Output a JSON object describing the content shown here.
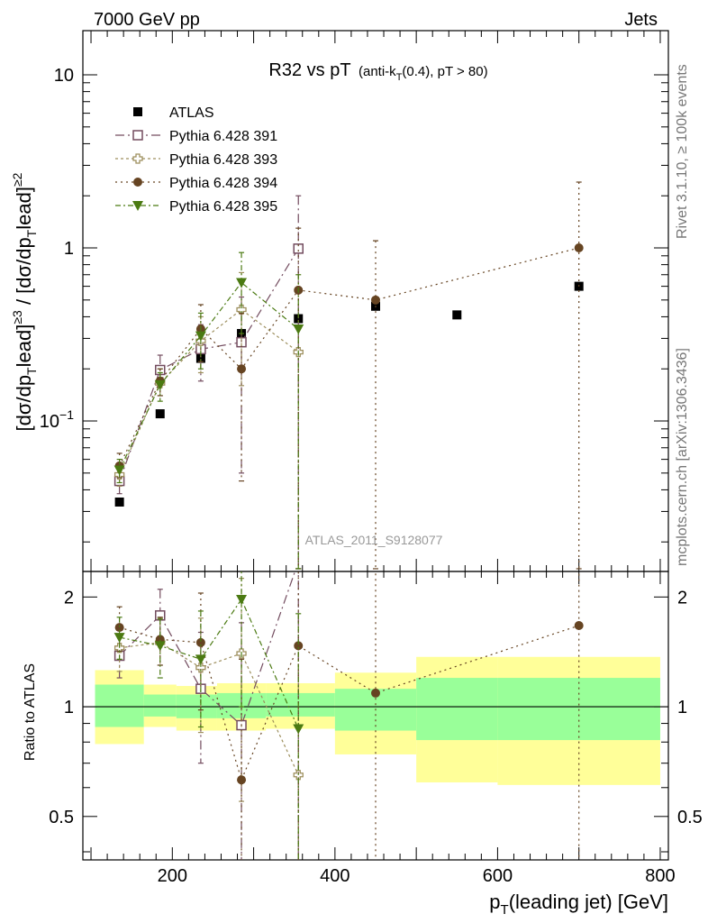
{
  "header": {
    "left": "7000 GeV pp",
    "right": "Jets",
    "plot_title_main": "R32 vs pT",
    "plot_title_sub": "(anti-k_T(0.4), pT > 80)"
  },
  "side_labels": {
    "rivet": "Rivet 3.1.10, ≥ 100k events",
    "mcplots": "mcplots.cern.ch [arXiv:1306.3436]"
  },
  "watermark": "ATLAS_2011_S9128077",
  "chart_data": [
    {
      "type": "scatter",
      "panel": "main",
      "title": "R32 vs pT (anti-k_T(0.4), pT > 80)",
      "xlabel": "p_T(leading jet) [GeV]",
      "ylabel": "[dσ/dp_T^lead]^≥3 / [dσ/dp_T^lead]^≥2",
      "xlim": [
        90,
        810
      ],
      "ylim": [
        0.0135,
        18
      ],
      "yscale": "log",
      "yticks": [
        {
          "v": 0.1,
          "label": "10",
          "sup": "−1"
        },
        {
          "v": 1,
          "label": "1",
          "sup": ""
        },
        {
          "v": 10,
          "label": "10",
          "sup": ""
        }
      ],
      "legend_position": "top-left",
      "series": [
        {
          "name": "ATLAS",
          "color": "#000000",
          "marker": "filled-square",
          "points": [
            {
              "x": 135,
              "y": 0.034
            },
            {
              "x": 185,
              "y": 0.11
            },
            {
              "x": 235,
              "y": 0.23
            },
            {
              "x": 285,
              "y": 0.32
            },
            {
              "x": 355,
              "y": 0.39
            },
            {
              "x": 450,
              "y": 0.46
            },
            {
              "x": 550,
              "y": 0.41
            },
            {
              "x": 700,
              "y": 0.6
            }
          ]
        },
        {
          "name": "Pythia 6.428 391",
          "color": "#734c5f",
          "marker": "open-square",
          "dash": "10,4,2,4",
          "points": [
            {
              "x": 135,
              "y": 0.045,
              "lo": 0.038,
              "hi": 0.054
            },
            {
              "x": 185,
              "y": 0.197,
              "lo": 0.16,
              "hi": 0.24
            },
            {
              "x": 235,
              "y": 0.26,
              "lo": 0.17,
              "hi": 0.36
            },
            {
              "x": 285,
              "y": 0.285,
              "lo": 0.05,
              "hi": 0.52
            },
            {
              "x": 355,
              "y": 0.99,
              "lo": 0.014,
              "hi": 2.0
            }
          ]
        },
        {
          "name": "Pythia 6.428 393",
          "color": "#9d8f5d",
          "marker": "open-cross",
          "dash": "3,3",
          "points": [
            {
              "x": 135,
              "y": 0.049,
              "lo": 0.042,
              "hi": 0.057
            },
            {
              "x": 185,
              "y": 0.165,
              "lo": 0.14,
              "hi": 0.2
            },
            {
              "x": 235,
              "y": 0.29,
              "lo": 0.19,
              "hi": 0.4
            },
            {
              "x": 285,
              "y": 0.44,
              "lo": 0.16,
              "hi": 0.72
            },
            {
              "x": 355,
              "y": 0.25,
              "lo": 0.014,
              "hi": 0.55
            }
          ]
        },
        {
          "name": "Pythia 6.428 394",
          "color": "#664422",
          "marker": "filled-circle",
          "dash": "2,4",
          "points": [
            {
              "x": 135,
              "y": 0.055,
              "lo": 0.047,
              "hi": 0.065
            },
            {
              "x": 185,
              "y": 0.17,
              "lo": 0.14,
              "hi": 0.2
            },
            {
              "x": 235,
              "y": 0.34,
              "lo": 0.22,
              "hi": 0.47
            },
            {
              "x": 285,
              "y": 0.2,
              "lo": 0.045,
              "hi": 0.42
            },
            {
              "x": 355,
              "y": 0.57,
              "lo": 0.014,
              "hi": 1.3
            },
            {
              "x": 450,
              "y": 0.5,
              "lo": 0.014,
              "hi": 1.1
            },
            {
              "x": 700,
              "y": 1.0,
              "lo": 0.014,
              "hi": 2.4
            }
          ]
        },
        {
          "name": "Pythia 6.428 395",
          "color": "#4b7a12",
          "marker": "filled-triangle-down",
          "dash": "6,3,2,3",
          "points": [
            {
              "x": 135,
              "y": 0.052,
              "lo": 0.044,
              "hi": 0.06
            },
            {
              "x": 185,
              "y": 0.162,
              "lo": 0.13,
              "hi": 0.19
            },
            {
              "x": 235,
              "y": 0.31,
              "lo": 0.2,
              "hi": 0.42
            },
            {
              "x": 285,
              "y": 0.63,
              "lo": 0.32,
              "hi": 0.94
            },
            {
              "x": 355,
              "y": 0.34,
              "lo": 0.014,
              "hi": 0.7
            }
          ]
        }
      ]
    },
    {
      "type": "scatter",
      "panel": "ratio",
      "xlabel": "p_T(leading jet) [GeV]",
      "ylabel": "Ratio to ATLAS",
      "xlim": [
        90,
        810
      ],
      "ylim": [
        0.38,
        2.35
      ],
      "yscale": "log",
      "xticks": [
        200,
        400,
        600,
        800
      ],
      "yticks": [
        0.5,
        1,
        2
      ],
      "reference_line": 1,
      "bands": [
        {
          "x0": 105,
          "x1": 165,
          "green": [
            0.88,
            1.15
          ],
          "yellow": [
            0.79,
            1.26
          ]
        },
        {
          "x0": 165,
          "x1": 205,
          "green": [
            0.94,
            1.08
          ],
          "yellow": [
            0.88,
            1.15
          ]
        },
        {
          "x0": 205,
          "x1": 255,
          "green": [
            0.93,
            1.08
          ],
          "yellow": [
            0.86,
            1.14
          ]
        },
        {
          "x0": 255,
          "x1": 315,
          "green": [
            0.93,
            1.09
          ],
          "yellow": [
            0.86,
            1.16
          ]
        },
        {
          "x0": 315,
          "x1": 400,
          "green": [
            0.94,
            1.09
          ],
          "yellow": [
            0.87,
            1.16
          ]
        },
        {
          "x0": 400,
          "x1": 500,
          "green": [
            0.86,
            1.12
          ],
          "yellow": [
            0.74,
            1.24
          ]
        },
        {
          "x0": 500,
          "x1": 600,
          "green": [
            0.81,
            1.2
          ],
          "yellow": [
            0.62,
            1.37
          ]
        },
        {
          "x0": 600,
          "x1": 800,
          "green": [
            0.81,
            1.2
          ],
          "yellow": [
            0.61,
            1.37
          ]
        }
      ],
      "series": [
        {
          "name": "Pythia 6.428 391",
          "color": "#734c5f",
          "marker": "open-square",
          "dash": "10,4,2,4",
          "points": [
            {
              "x": 135,
              "y": 1.38,
              "lo": 1.2,
              "hi": 1.58
            },
            {
              "x": 185,
              "y": 1.78,
              "lo": 1.5,
              "hi": 2.1
            },
            {
              "x": 235,
              "y": 1.12,
              "lo": 0.7,
              "hi": 1.6
            },
            {
              "x": 285,
              "y": 0.89,
              "lo": 0.35,
              "hi": 1.7
            },
            {
              "x": 355,
              "y": 2.5,
              "lo": 0.35,
              "hi": 3.5
            }
          ]
        },
        {
          "name": "Pythia 6.428 393",
          "color": "#9d8f5d",
          "marker": "open-cross",
          "dash": "3,3",
          "points": [
            {
              "x": 135,
              "y": 1.45,
              "lo": 1.25,
              "hi": 1.65
            },
            {
              "x": 185,
              "y": 1.5,
              "lo": 1.3,
              "hi": 1.75
            },
            {
              "x": 235,
              "y": 1.28,
              "lo": 0.85,
              "hi": 1.75
            },
            {
              "x": 285,
              "y": 1.4,
              "lo": 0.55,
              "hi": 2.25
            },
            {
              "x": 355,
              "y": 0.65,
              "lo": 0.35,
              "hi": 1.45
            }
          ]
        },
        {
          "name": "Pythia 6.428 394",
          "color": "#664422",
          "marker": "filled-circle",
          "dash": "2,4",
          "points": [
            {
              "x": 135,
              "y": 1.65,
              "lo": 1.42,
              "hi": 1.88
            },
            {
              "x": 185,
              "y": 1.53,
              "lo": 1.3,
              "hi": 1.76
            },
            {
              "x": 235,
              "y": 1.5,
              "lo": 0.98,
              "hi": 2.05
            },
            {
              "x": 285,
              "y": 0.63,
              "lo": 0.35,
              "hi": 1.35
            },
            {
              "x": 355,
              "y": 1.47,
              "lo": 0.35,
              "hi": 3.3
            },
            {
              "x": 450,
              "y": 1.09,
              "lo": 0.35,
              "hi": 2.4
            },
            {
              "x": 700,
              "y": 1.67,
              "lo": 0.35,
              "hi": 4.0
            }
          ]
        },
        {
          "name": "Pythia 6.428 395",
          "color": "#4b7a12",
          "marker": "filled-triangle-down",
          "dash": "6,3,2,3",
          "points": [
            {
              "x": 135,
              "y": 1.55,
              "lo": 1.35,
              "hi": 1.76
            },
            {
              "x": 185,
              "y": 1.47,
              "lo": 1.2,
              "hi": 1.74
            },
            {
              "x": 235,
              "y": 1.35,
              "lo": 0.88,
              "hi": 1.83
            },
            {
              "x": 285,
              "y": 1.97,
              "lo": 1.0,
              "hi": 2.9
            },
            {
              "x": 355,
              "y": 0.87,
              "lo": 0.35,
              "hi": 1.8
            }
          ]
        }
      ]
    }
  ]
}
